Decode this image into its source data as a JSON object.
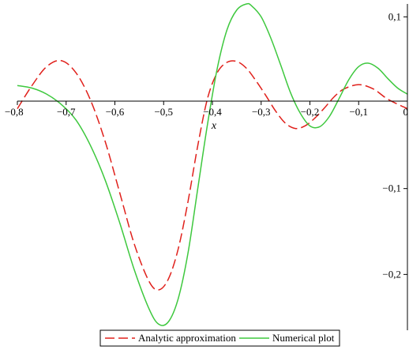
{
  "chart_data": {
    "type": "line",
    "title": "",
    "xlabel": "x",
    "ylabel": "",
    "xlim": [
      -0.8,
      0.0
    ],
    "ylim": [
      -0.265,
      0.115
    ],
    "x_ticks": [
      -0.8,
      -0.7,
      -0.6,
      -0.5,
      -0.4,
      -0.3,
      -0.2,
      -0.1,
      0
    ],
    "x_tick_labels": [
      "−0,8",
      "−0,7",
      "−0,6",
      "−0,5",
      "−0,4",
      "−0,3",
      "−0,2",
      "−0,1",
      "0"
    ],
    "y_ticks": [
      0.1,
      -0.1,
      -0.2
    ],
    "y_tick_labels": [
      "0,1",
      "−0,1",
      "−0,2"
    ],
    "grid": false,
    "legend_position": "bottom-center",
    "series": [
      {
        "name": "Analytic approximation",
        "color": "#e0201b",
        "style": "dashed",
        "x": [
          -0.8,
          -0.77,
          -0.74,
          -0.71,
          -0.68,
          -0.65,
          -0.62,
          -0.59,
          -0.56,
          -0.53,
          -0.51,
          -0.49,
          -0.47,
          -0.45,
          -0.43,
          -0.41,
          -0.39,
          -0.37,
          -0.35,
          -0.33,
          -0.31,
          -0.29,
          -0.27,
          -0.25,
          -0.23,
          -0.21,
          -0.19,
          -0.17,
          -0.15,
          -0.13,
          -0.1,
          -0.07,
          -0.04,
          0
        ],
        "y": [
          -0.007,
          0.02,
          0.042,
          0.049,
          0.035,
          0.003,
          -0.045,
          -0.105,
          -0.165,
          -0.208,
          -0.218,
          -0.205,
          -0.17,
          -0.115,
          -0.05,
          0.005,
          0.035,
          0.047,
          0.048,
          0.04,
          0.025,
          0.008,
          -0.01,
          -0.024,
          -0.03,
          -0.027,
          -0.018,
          -0.006,
          0.007,
          0.016,
          0.021,
          0.016,
          0.004,
          -0.007
        ]
      },
      {
        "name": "Numerical plot",
        "color": "#3ec83e",
        "style": "solid",
        "x": [
          -0.8,
          -0.77,
          -0.74,
          -0.71,
          -0.68,
          -0.65,
          -0.62,
          -0.59,
          -0.56,
          -0.53,
          -0.51,
          -0.49,
          -0.47,
          -0.45,
          -0.43,
          -0.41,
          -0.39,
          -0.37,
          -0.35,
          -0.33,
          -0.32,
          -0.3,
          -0.28,
          -0.26,
          -0.24,
          -0.22,
          -0.2,
          -0.18,
          -0.16,
          -0.14,
          -0.12,
          -0.1,
          -0.08,
          -0.06,
          -0.04,
          -0.02,
          0
        ],
        "y": [
          0.02,
          0.017,
          0.01,
          -0.002,
          -0.02,
          -0.05,
          -0.09,
          -0.14,
          -0.195,
          -0.24,
          -0.258,
          -0.255,
          -0.228,
          -0.175,
          -0.1,
          -0.025,
          0.04,
          0.085,
          0.108,
          0.115,
          0.113,
          0.1,
          0.075,
          0.044,
          0.012,
          -0.012,
          -0.027,
          -0.028,
          -0.016,
          0.005,
          0.027,
          0.042,
          0.046,
          0.04,
          0.028,
          0.017,
          0.01
        ]
      }
    ]
  }
}
